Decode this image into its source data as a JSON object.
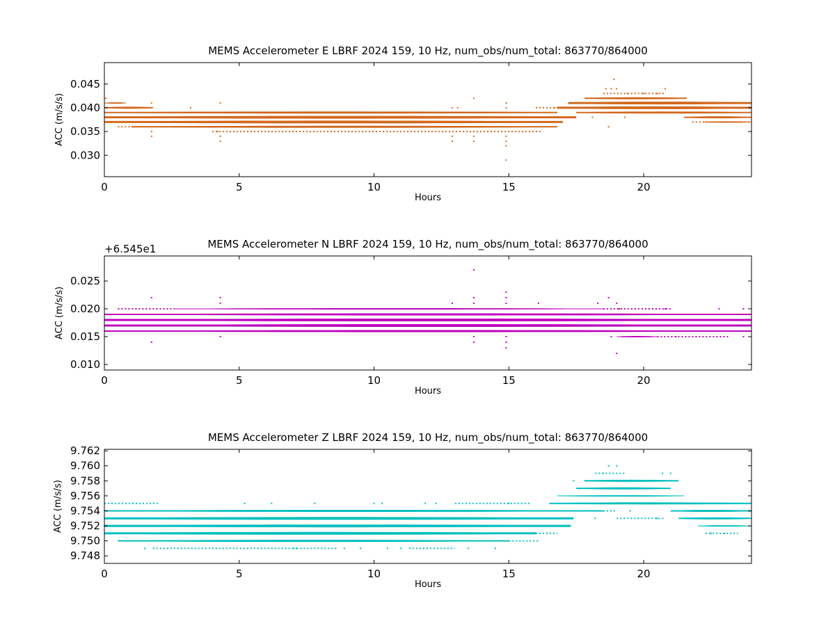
{
  "chart_data": [
    {
      "type": "scatter",
      "title": "MEMS Accelerometer E LBRF 2024 159, 10 Hz, num_obs/num_total: 863770/864000",
      "xlabel": "Hours",
      "ylabel": "ACC (m/s/s)",
      "offset_text": "",
      "color": "#d2691e",
      "xlim": [
        0,
        24
      ],
      "ylim": [
        0.0255,
        0.0495
      ],
      "xticks": [
        0,
        5,
        10,
        15,
        20
      ],
      "xtick_labels": [
        "0",
        "5",
        "10",
        "15",
        "20"
      ],
      "yticks": [
        0.03,
        0.035,
        0.04,
        0.045
      ],
      "ytick_labels": [
        "0.030",
        "0.035",
        "0.040",
        "0.045"
      ],
      "grid": false,
      "bands": [
        {
          "y": 0.041,
          "x": [
            0,
            0.8
          ],
          "w": 2
        },
        {
          "y": 0.04,
          "x": [
            0,
            1.8
          ],
          "w": 3
        },
        {
          "y": 0.039,
          "x": [
            0,
            16.8
          ],
          "w": 3
        },
        {
          "y": 0.038,
          "x": [
            0,
            17.5
          ],
          "w": 4
        },
        {
          "y": 0.037,
          "x": [
            0,
            17.0
          ],
          "w": 4
        },
        {
          "y": 0.036,
          "x": [
            1.0,
            16.8
          ],
          "w": 3
        },
        {
          "y": 0.042,
          "x": [
            17.8,
            21.6
          ],
          "w": 3
        },
        {
          "y": 0.041,
          "x": [
            17.2,
            24
          ],
          "w": 4
        },
        {
          "y": 0.04,
          "x": [
            16.8,
            24
          ],
          "w": 4
        },
        {
          "y": 0.039,
          "x": [
            17.5,
            24
          ],
          "w": 3
        },
        {
          "y": 0.038,
          "x": [
            21.5,
            24
          ],
          "w": 3
        },
        {
          "y": 0.037,
          "x": [
            22.2,
            24
          ],
          "w": 2
        }
      ],
      "points": [
        [
          0.05,
          0.042
        ],
        [
          0.6,
          0.041
        ],
        [
          1.75,
          0.034
        ],
        [
          1.75,
          0.035
        ],
        [
          1.75,
          0.041
        ],
        [
          4.3,
          0.041
        ],
        [
          4.3,
          0.033
        ],
        [
          4.3,
          0.034
        ],
        [
          4.2,
          0.035
        ],
        [
          3.2,
          0.04
        ],
        [
          12.9,
          0.04
        ],
        [
          12.9,
          0.034
        ],
        [
          12.9,
          0.033
        ],
        [
          13.1,
          0.04
        ],
        [
          13.7,
          0.042
        ],
        [
          13.7,
          0.034
        ],
        [
          13.7,
          0.033
        ],
        [
          14.5,
          0.039
        ],
        [
          14.9,
          0.041
        ],
        [
          14.9,
          0.04
        ],
        [
          14.9,
          0.034
        ],
        [
          14.9,
          0.033
        ],
        [
          14.9,
          0.032
        ],
        [
          14.9,
          0.029
        ],
        [
          16.7,
          0.04
        ],
        [
          18.6,
          0.044
        ],
        [
          18.8,
          0.044
        ],
        [
          18.9,
          0.046
        ],
        [
          19.0,
          0.044
        ],
        [
          19.4,
          0.043
        ],
        [
          20.0,
          0.043
        ],
        [
          20.8,
          0.044
        ],
        [
          20.5,
          0.043
        ],
        [
          18.7,
          0.036
        ],
        [
          19.3,
          0.038
        ],
        [
          22.9,
          0.037
        ],
        [
          18.1,
          0.038
        ],
        [
          23.6,
          0.037
        ]
      ],
      "sparse_rows": [
        {
          "y": 0.036,
          "x": [
            0.5,
            5.8
          ]
        },
        {
          "y": 0.035,
          "x": [
            4.0,
            16.2
          ]
        },
        {
          "y": 0.039,
          "x": [
            9.5,
            15.5
          ]
        },
        {
          "y": 0.043,
          "x": [
            18.5,
            20.8
          ]
        },
        {
          "y": 0.037,
          "x": [
            21.8,
            24
          ]
        },
        {
          "y": 0.04,
          "x": [
            16.0,
            17.0
          ]
        }
      ]
    },
    {
      "type": "scatter",
      "title": "MEMS Accelerometer N LBRF 2024 159, 10 Hz, num_obs/num_total: 863770/864000",
      "xlabel": "Hours",
      "ylabel": "ACC (m/s/s)",
      "offset_text": "+6.545e1",
      "color": "#bf00bf",
      "xlim": [
        0,
        24
      ],
      "ylim": [
        0.009,
        0.0295
      ],
      "xticks": [
        0,
        5,
        10,
        15,
        20
      ],
      "xtick_labels": [
        "0",
        "5",
        "10",
        "15",
        "20"
      ],
      "yticks": [
        0.01,
        0.015,
        0.02,
        0.025
      ],
      "ytick_labels": [
        "0.010",
        "0.015",
        "0.020",
        "0.025"
      ],
      "grid": false,
      "bands": [
        {
          "y": 0.02,
          "x": [
            2.6,
            18.5
          ],
          "w": 2
        },
        {
          "y": 0.019,
          "x": [
            0,
            24
          ],
          "w": 3
        },
        {
          "y": 0.018,
          "x": [
            0,
            24
          ],
          "w": 4
        },
        {
          "y": 0.017,
          "x": [
            0,
            24
          ],
          "w": 4
        },
        {
          "y": 0.016,
          "x": [
            0,
            24
          ],
          "w": 3
        },
        {
          "y": 0.015,
          "x": [
            19.0,
            20.5
          ],
          "w": 2
        }
      ],
      "points": [
        [
          1.75,
          0.022
        ],
        [
          1.75,
          0.014
        ],
        [
          4.3,
          0.022
        ],
        [
          4.3,
          0.021
        ],
        [
          4.3,
          0.015
        ],
        [
          12.9,
          0.021
        ],
        [
          13.7,
          0.027
        ],
        [
          13.7,
          0.022
        ],
        [
          13.7,
          0.021
        ],
        [
          13.7,
          0.015
        ],
        [
          13.7,
          0.014
        ],
        [
          14.9,
          0.023
        ],
        [
          14.9,
          0.022
        ],
        [
          14.9,
          0.021
        ],
        [
          14.9,
          0.015
        ],
        [
          14.9,
          0.014
        ],
        [
          14.9,
          0.013
        ],
        [
          16.1,
          0.021
        ],
        [
          18.3,
          0.021
        ],
        [
          18.7,
          0.022
        ],
        [
          19.0,
          0.021
        ],
        [
          19.0,
          0.012
        ],
        [
          19.1,
          0.02
        ],
        [
          18.8,
          0.015
        ],
        [
          20.2,
          0.02
        ],
        [
          22.8,
          0.02
        ],
        [
          23.7,
          0.02
        ],
        [
          23.7,
          0.015
        ],
        [
          20.8,
          0.02
        ],
        [
          21.2,
          0.015
        ]
      ],
      "sparse_rows": [
        {
          "y": 0.02,
          "x": [
            0.5,
            2.6
          ]
        },
        {
          "y": 0.02,
          "x": [
            18.5,
            21.0
          ]
        },
        {
          "y": 0.016,
          "x": [
            1.0,
            9.2
          ]
        },
        {
          "y": 0.015,
          "x": [
            20.5,
            23.2
          ]
        }
      ]
    },
    {
      "type": "scatter",
      "title": "MEMS Accelerometer Z LBRF 2024 159, 10 Hz, num_obs/num_total: 863770/864000",
      "xlabel": "Hours",
      "ylabel": "ACC (m/s/s)",
      "offset_text": "",
      "color": "#00bfbf",
      "xlim": [
        0,
        24
      ],
      "ylim": [
        9.747,
        9.7622
      ],
      "xticks": [
        0,
        5,
        10,
        15,
        20
      ],
      "xtick_labels": [
        "0",
        "5",
        "10",
        "15",
        "20"
      ],
      "yticks": [
        9.748,
        9.75,
        9.752,
        9.754,
        9.756,
        9.758,
        9.76,
        9.762
      ],
      "ytick_labels": [
        "9.748",
        "9.750",
        "9.752",
        "9.754",
        "9.756",
        "9.758",
        "9.760",
        "9.762"
      ],
      "grid": false,
      "bands": [
        {
          "y": 9.755,
          "x": [
            16.5,
            24
          ],
          "w": 3
        },
        {
          "y": 9.754,
          "x": [
            0,
            18.5
          ],
          "w": 3
        },
        {
          "y": 9.753,
          "x": [
            0,
            17.4
          ],
          "w": 4
        },
        {
          "y": 9.752,
          "x": [
            0,
            17.3
          ],
          "w": 4
        },
        {
          "y": 9.751,
          "x": [
            0,
            16.0
          ],
          "w": 4
        },
        {
          "y": 9.75,
          "x": [
            0.5,
            15.0
          ],
          "w": 3
        },
        {
          "y": 9.754,
          "x": [
            21.0,
            24
          ],
          "w": 3
        },
        {
          "y": 9.753,
          "x": [
            21.3,
            24
          ],
          "w": 3
        },
        {
          "y": 9.752,
          "x": [
            22.0,
            24
          ],
          "w": 2
        },
        {
          "y": 9.757,
          "x": [
            17.5,
            21.0
          ],
          "w": 3
        },
        {
          "y": 9.758,
          "x": [
            17.8,
            21.3
          ],
          "w": 3
        },
        {
          "y": 9.756,
          "x": [
            16.8,
            21.5
          ],
          "w": 2
        }
      ],
      "points": [
        [
          5.2,
          9.755
        ],
        [
          6.2,
          9.755
        ],
        [
          7.8,
          9.755
        ],
        [
          10.0,
          9.755
        ],
        [
          10.3,
          9.755
        ],
        [
          11.9,
          9.755
        ],
        [
          12.3,
          9.755
        ],
        [
          15.0,
          9.755
        ],
        [
          17.4,
          9.758
        ],
        [
          17.6,
          9.757
        ],
        [
          18.5,
          9.759
        ],
        [
          18.7,
          9.76
        ],
        [
          19.0,
          9.76
        ],
        [
          20.7,
          9.759
        ],
        [
          21.0,
          9.759
        ],
        [
          19.5,
          9.754
        ],
        [
          19.8,
          9.753
        ],
        [
          20.5,
          9.753
        ],
        [
          22.5,
          9.751
        ],
        [
          23.0,
          9.751
        ],
        [
          1.5,
          9.749
        ],
        [
          18.2,
          9.753
        ],
        [
          17.9,
          9.754
        ],
        [
          14.5,
          9.749
        ],
        [
          13.5,
          9.749
        ],
        [
          8.9,
          9.749
        ],
        [
          9.5,
          9.749
        ],
        [
          10.5,
          9.749
        ],
        [
          11.0,
          9.749
        ]
      ],
      "sparse_rows": [
        {
          "y": 9.755,
          "x": [
            0,
            2.0
          ]
        },
        {
          "y": 9.755,
          "x": [
            13.0,
            15.8
          ]
        },
        {
          "y": 9.749,
          "x": [
            1.8,
            7.2
          ]
        },
        {
          "y": 9.749,
          "x": [
            7.0,
            8.6
          ]
        },
        {
          "y": 9.749,
          "x": [
            11.3,
            13.0
          ]
        },
        {
          "y": 9.75,
          "x": [
            15.0,
            16.1
          ]
        },
        {
          "y": 9.751,
          "x": [
            16.0,
            16.8
          ]
        },
        {
          "y": 9.754,
          "x": [
            18.5,
            19.0
          ]
        },
        {
          "y": 9.753,
          "x": [
            19.0,
            20.8
          ]
        },
        {
          "y": 9.751,
          "x": [
            22.3,
            23.5
          ]
        },
        {
          "y": 9.755,
          "x": [
            22.0,
            24
          ]
        },
        {
          "y": 9.759,
          "x": [
            18.2,
            19.3
          ]
        }
      ]
    }
  ]
}
